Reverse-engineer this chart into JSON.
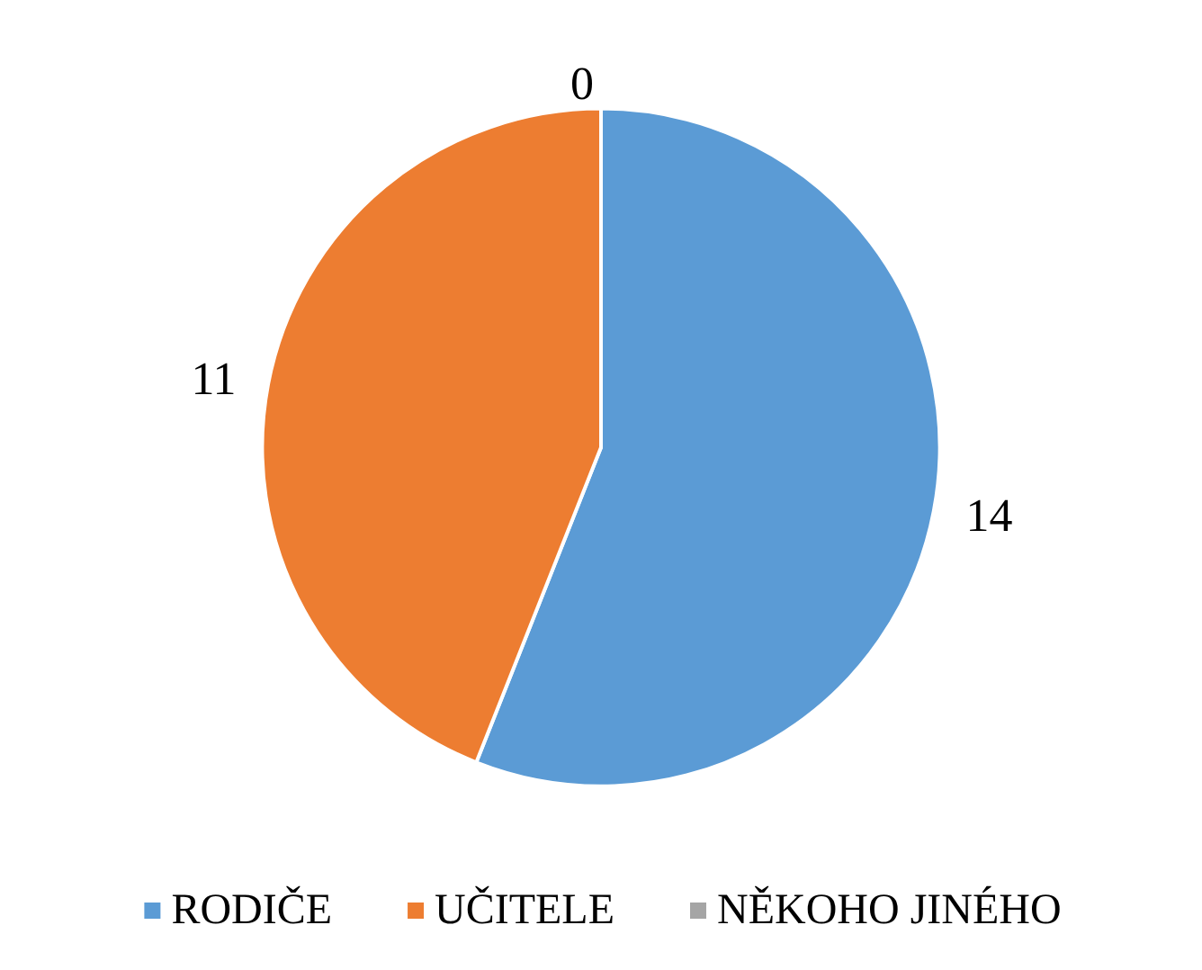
{
  "chart_data": {
    "type": "pie",
    "categories": [
      "RODIČE",
      "UČITELE",
      "NĚKOHO JINÉHO"
    ],
    "values": [
      14,
      11,
      0
    ],
    "colors": [
      "#5b9bd5",
      "#ed7d31",
      "#a5a5a5"
    ],
    "value_labels": [
      "14",
      "11",
      "0"
    ],
    "legend": "bottom"
  }
}
